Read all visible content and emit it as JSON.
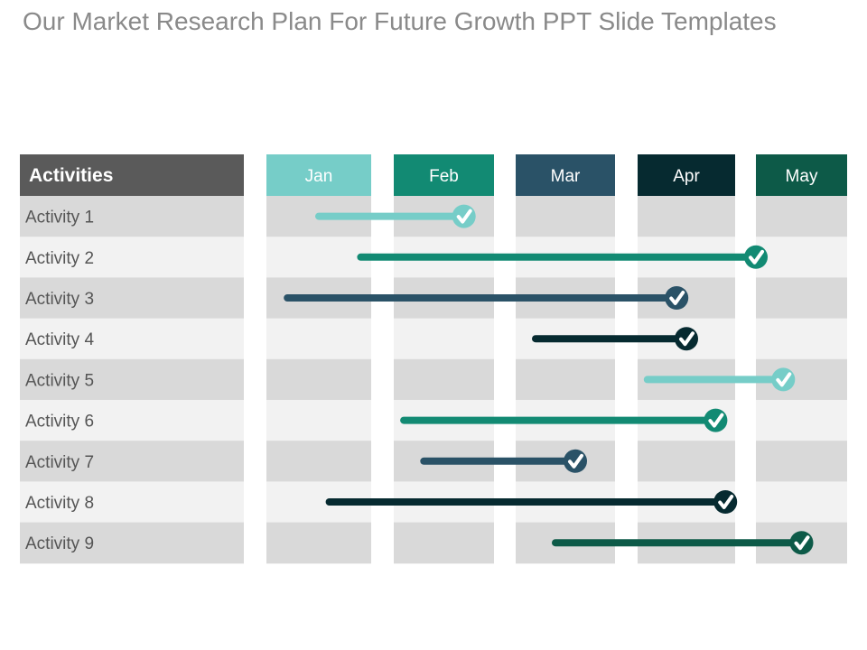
{
  "slide": {
    "title": "Our Market Research Plan For Future Growth PPT Slide Templates"
  },
  "table": {
    "header_label": "Activities",
    "header_color": "#5a5a5a",
    "row_colors": [
      "#d9d9d9",
      "#f2f2f2"
    ],
    "months": [
      {
        "label": "Jan",
        "color": "#76cdc8"
      },
      {
        "label": "Feb",
        "color": "#128a73"
      },
      {
        "label": "Mar",
        "color": "#2a5267"
      },
      {
        "label": "Apr",
        "color": "#062a30"
      },
      {
        "label": "May",
        "color": "#0d5a48"
      }
    ],
    "activities": [
      {
        "label": "Activity 1",
        "start": 0.5,
        "end": 1.7,
        "color": "#76cdc8"
      },
      {
        "label": "Activity 2",
        "start": 0.9,
        "end": 4.0,
        "color": "#128a73"
      },
      {
        "label": "Activity 3",
        "start": 0.2,
        "end": 3.4,
        "color": "#2a5267"
      },
      {
        "label": "Activity 4",
        "start": 2.2,
        "end": 3.5,
        "color": "#062a30"
      },
      {
        "label": "Activity 5",
        "start": 3.1,
        "end": 4.3,
        "color": "#76cdc8"
      },
      {
        "label": "Activity 6",
        "start": 1.1,
        "end": 3.8,
        "color": "#128a73"
      },
      {
        "label": "Activity 7",
        "start": 1.3,
        "end": 2.6,
        "color": "#2a5267"
      },
      {
        "label": "Activity 8",
        "start": 0.6,
        "end": 3.9,
        "color": "#062a30"
      },
      {
        "label": "Activity 9",
        "start": 2.4,
        "end": 4.5,
        "color": "#0d5a48"
      }
    ]
  }
}
